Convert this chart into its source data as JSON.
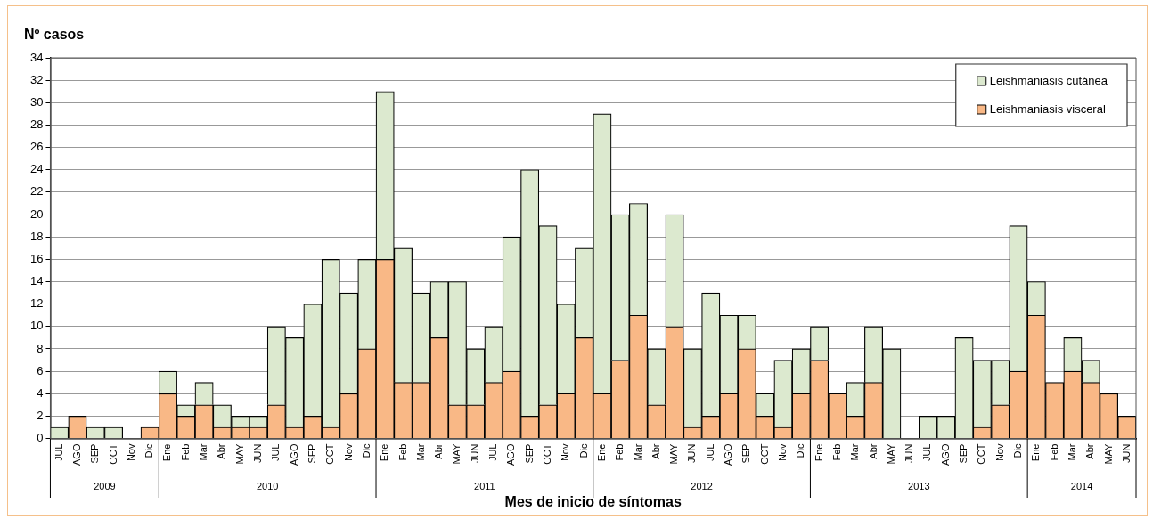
{
  "chart_data": {
    "type": "bar",
    "stacked": true,
    "ylabel": "Nº casos",
    "xlabel": "Mes de inicio de síntomas",
    "categories": [
      "JUL",
      "AGO",
      "SEP",
      "OCT",
      "Nov",
      "Dic",
      "Ene",
      "Feb",
      "Mar",
      "Abr",
      "MAY",
      "JUN",
      "JUL",
      "AGO",
      "SEP",
      "OCT",
      "Nov",
      "Dic",
      "Ene",
      "Feb",
      "Mar",
      "Abr",
      "MAY",
      "JUN",
      "JUL",
      "AGO",
      "SEP",
      "OCT",
      "Nov",
      "Dic",
      "Ene",
      "Feb",
      "Mar",
      "Abr",
      "MAY",
      "JUN",
      "JUL",
      "AGO",
      "SEP",
      "OCT",
      "Nov",
      "Dic",
      "Ene",
      "Feb",
      "Mar",
      "Abr",
      "MAY",
      "JUN",
      "JUL",
      "AGO",
      "SEP",
      "OCT",
      "Nov",
      "Dic",
      "Ene",
      "Feb",
      "Mar",
      "Abr",
      "MAY",
      "JUN"
    ],
    "series": [
      {
        "name": "Leishmaniasis visceral",
        "color": "#f9b886",
        "values": [
          0,
          2,
          0,
          0,
          0,
          1,
          4,
          2,
          3,
          1,
          1,
          1,
          3,
          1,
          2,
          1,
          4,
          8,
          16,
          5,
          5,
          9,
          3,
          3,
          5,
          6,
          2,
          3,
          4,
          9,
          4,
          7,
          11,
          3,
          10,
          1,
          2,
          4,
          8,
          2,
          1,
          4,
          7,
          4,
          2,
          5,
          0,
          0,
          0,
          0,
          0,
          1,
          3,
          6,
          11,
          5,
          6,
          5,
          4,
          2
        ]
      },
      {
        "name": "Leishmaniasis cutánea",
        "color": "#dce9cf",
        "values": [
          1,
          0,
          1,
          1,
          0,
          0,
          2,
          1,
          2,
          2,
          1,
          1,
          7,
          8,
          10,
          15,
          9,
          8,
          15,
          12,
          8,
          5,
          11,
          5,
          5,
          12,
          22,
          16,
          8,
          8,
          25,
          13,
          10,
          5,
          10,
          7,
          11,
          7,
          3,
          2,
          6,
          4,
          3,
          0,
          3,
          5,
          8,
          0,
          2,
          2,
          9,
          6,
          4,
          13,
          3,
          0,
          3,
          2,
          0,
          0
        ]
      }
    ],
    "annotations": [
      "2009",
      "2010",
      "2011",
      "2012",
      "2013",
      "2014"
    ],
    "ylim": [
      0,
      34
    ],
    "yticks": [
      0,
      2,
      4,
      6,
      8,
      10,
      12,
      14,
      16,
      18,
      20,
      22,
      24,
      26,
      28,
      30,
      32,
      34
    ],
    "grid": "y",
    "legend": "top right"
  }
}
